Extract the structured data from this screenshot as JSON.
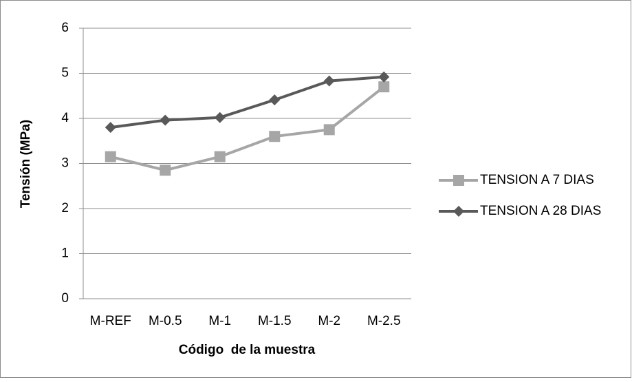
{
  "chart_data": {
    "type": "line",
    "x_label": "Código  de la muestra",
    "y_label": "Tensión (MPa)",
    "categories": [
      "M-REF",
      "M-0.5",
      "M-1",
      "M-1.5",
      "M-2",
      "M-2.5"
    ],
    "series": [
      {
        "name": "TENSION A 7 DIAS",
        "color": "#a6a6a6",
        "marker": "square",
        "values": [
          3.15,
          2.85,
          3.15,
          3.6,
          3.75,
          4.7
        ]
      },
      {
        "name": "TENSION A 28 DIAS",
        "color": "#595959",
        "marker": "diamond",
        "values": [
          3.8,
          3.96,
          4.02,
          4.41,
          4.83,
          4.92
        ]
      }
    ],
    "ylim": [
      0,
      6
    ],
    "yticks": [
      0,
      1,
      2,
      3,
      4,
      5,
      6
    ],
    "grid": true,
    "legend": "right"
  }
}
